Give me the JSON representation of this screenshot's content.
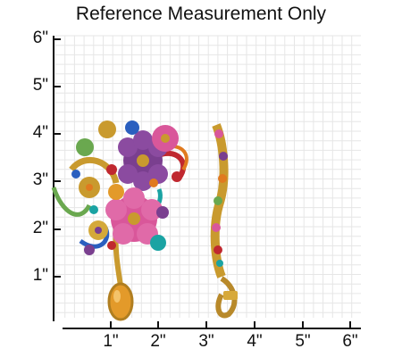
{
  "title": "Reference Measurement Only",
  "units": "inches",
  "x_axis": {
    "ticks": [
      "1\"",
      "2\"",
      "3\"",
      "4\"",
      "5\"",
      "6\""
    ]
  },
  "y_axis": {
    "ticks": [
      "1\"",
      "2\"",
      "3\"",
      "4\"",
      "5\"",
      "6\""
    ]
  },
  "grid": true,
  "subject": "jeweled floral brooch shown front and side view",
  "colors": {
    "gold": "#c99a2e",
    "grid": "#e6e6e6",
    "purple": "#7a3f8f",
    "pink": "#d9579a",
    "orange": "#e07a1f",
    "teal": "#1aa3a3",
    "blue": "#2a5fbf",
    "green": "#6aa84f",
    "red": "#c0282f",
    "topaz": "#e39a2a"
  }
}
